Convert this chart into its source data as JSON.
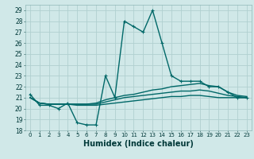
{
  "title": "",
  "xlabel": "Humidex (Indice chaleur)",
  "ylabel": "",
  "background_color": "#d0e8e8",
  "grid_color": "#b0d0d0",
  "line_color": "#006868",
  "xlim": [
    -0.5,
    23.5
  ],
  "ylim": [
    18,
    29.5
  ],
  "yticks": [
    18,
    19,
    20,
    21,
    22,
    23,
    24,
    25,
    26,
    27,
    28,
    29
  ],
  "xticks": [
    0,
    1,
    2,
    3,
    4,
    5,
    6,
    7,
    8,
    9,
    10,
    11,
    12,
    13,
    14,
    15,
    16,
    17,
    18,
    19,
    20,
    21,
    22,
    23
  ],
  "line1_x": [
    0,
    1,
    2,
    3,
    4,
    5,
    6,
    7,
    8,
    9,
    10,
    11,
    12,
    13,
    14,
    15,
    16,
    17,
    18,
    19,
    20,
    21,
    22,
    23
  ],
  "line1_y": [
    21.3,
    20.3,
    20.3,
    20.0,
    20.5,
    18.7,
    18.5,
    18.5,
    23.0,
    21.0,
    28.0,
    27.5,
    27.0,
    29.0,
    26.0,
    23.0,
    22.5,
    22.5,
    22.5,
    22.0,
    22.0,
    21.5,
    21.0,
    21.0
  ],
  "line2_x": [
    0,
    1,
    2,
    3,
    4,
    5,
    6,
    7,
    8,
    9,
    10,
    11,
    12,
    13,
    14,
    15,
    16,
    17,
    18,
    19,
    20,
    21,
    22,
    23
  ],
  "line2_y": [
    21.0,
    20.5,
    20.4,
    20.4,
    20.4,
    20.4,
    20.4,
    20.5,
    20.8,
    21.0,
    21.2,
    21.3,
    21.5,
    21.7,
    21.8,
    22.0,
    22.1,
    22.2,
    22.3,
    22.1,
    22.0,
    21.5,
    21.2,
    21.1
  ],
  "line3_x": [
    0,
    1,
    2,
    3,
    4,
    5,
    6,
    7,
    8,
    9,
    10,
    11,
    12,
    13,
    14,
    15,
    16,
    17,
    18,
    19,
    20,
    21,
    22,
    23
  ],
  "line3_y": [
    21.0,
    20.5,
    20.4,
    20.4,
    20.4,
    20.4,
    20.4,
    20.4,
    20.6,
    20.8,
    21.0,
    21.1,
    21.2,
    21.3,
    21.4,
    21.5,
    21.6,
    21.6,
    21.7,
    21.6,
    21.4,
    21.2,
    21.1,
    21.0
  ],
  "line4_x": [
    0,
    1,
    2,
    3,
    4,
    5,
    6,
    7,
    8,
    9,
    10,
    11,
    12,
    13,
    14,
    15,
    16,
    17,
    18,
    19,
    20,
    21,
    22,
    23
  ],
  "line4_y": [
    21.0,
    20.5,
    20.4,
    20.4,
    20.4,
    20.3,
    20.3,
    20.3,
    20.4,
    20.5,
    20.6,
    20.7,
    20.8,
    20.9,
    21.0,
    21.1,
    21.1,
    21.2,
    21.2,
    21.1,
    21.0,
    21.0,
    21.0,
    21.0
  ],
  "marker_size": 2.5,
  "line_width": 1.0,
  "tick_fontsize": 5.5,
  "label_fontsize": 7.0
}
